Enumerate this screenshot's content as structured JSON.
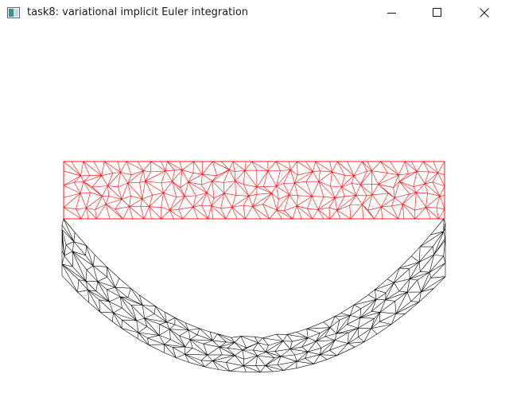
{
  "window": {
    "title": "task8: variational implicit Euler integration"
  },
  "controls": {
    "minimize_icon": "minimize-icon",
    "maximize_icon": "maximize-icon",
    "close_icon": "close-icon"
  },
  "scene": {
    "rest_mesh_color": "#ff0000",
    "deformed_mesh_color": "#000000",
    "background": "#ffffff"
  }
}
